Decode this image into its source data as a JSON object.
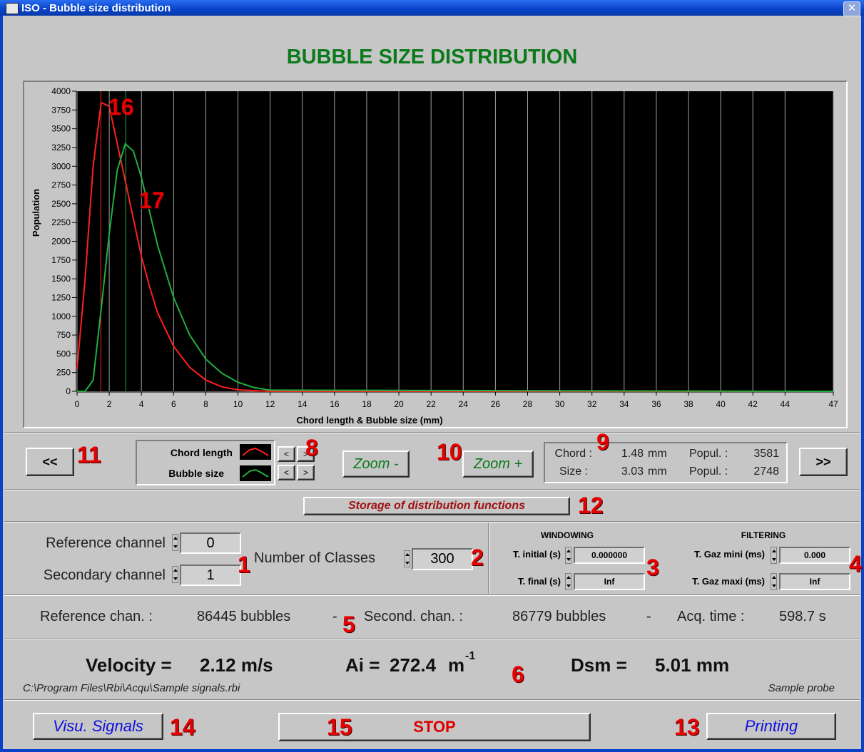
{
  "window": {
    "title": "ISO - Bubble size distribution"
  },
  "heading": "BUBBLE SIZE DISTRIBUTION",
  "graph": {
    "type": "line",
    "y_label": "Population",
    "x_label": "Chord length & Bubble size (mm)",
    "xlim": [
      0,
      47
    ],
    "ylim": [
      0,
      4000
    ],
    "xticks": [
      0,
      2,
      4,
      6,
      8,
      10,
      12,
      14,
      16,
      18,
      20,
      22,
      24,
      26,
      28,
      30,
      32,
      34,
      36,
      38,
      40,
      42,
      44,
      47
    ],
    "yticks": [
      0,
      250,
      500,
      750,
      1000,
      1250,
      1500,
      1750,
      2000,
      2250,
      2500,
      2750,
      3000,
      3250,
      3500,
      3750,
      4000
    ],
    "x": [
      0,
      0.5,
      1,
      1.5,
      2,
      2.5,
      3,
      3.5,
      4,
      4.5,
      5,
      6,
      7,
      8,
      9,
      10,
      11,
      12,
      47
    ],
    "series": [
      {
        "name": "Chord length",
        "color": "#ff2020",
        "values": [
          300,
          1500,
          3000,
          3850,
          3800,
          3300,
          2800,
          2300,
          1800,
          1400,
          1050,
          600,
          320,
          150,
          60,
          20,
          8,
          0,
          0
        ]
      },
      {
        "name": "Bubble size",
        "color": "#20b040",
        "values": [
          0,
          0,
          150,
          1100,
          2100,
          2950,
          3300,
          3200,
          2850,
          2400,
          1950,
          1250,
          750,
          430,
          240,
          120,
          50,
          15,
          0
        ]
      }
    ]
  },
  "nav": {
    "prev": "<<",
    "next": ">>",
    "left": "<",
    "right": ">",
    "zoom_out": "Zoom -",
    "zoom_in": "Zoom +"
  },
  "cursor": {
    "chord_label": "Chord :",
    "chord_value": "1.48",
    "size_label": "Size :",
    "size_value": "3.03",
    "unit": "mm",
    "popul_label": "Popul. :",
    "chord_popul": "3581",
    "size_popul": "2748"
  },
  "storage_button": "Storage of distribution functions",
  "channels": {
    "reference_label": "Reference channel",
    "reference_value": "0",
    "secondary_label": "Secondary channel",
    "secondary_value": "1",
    "classes_label": "Number of Classes",
    "classes_value": "300"
  },
  "windowing": {
    "title": "WINDOWING",
    "initial_label": "T. initial (s)",
    "initial_value": "0.000000",
    "final_label": "T. final (s)",
    "final_value": "Inf"
  },
  "filtering": {
    "title": "FILTERING",
    "mini_label": "T. Gaz mini (ms)",
    "mini_value": "0.000",
    "maxi_label": "T. Gaz maxi (ms)",
    "maxi_value": "Inf"
  },
  "stats": {
    "reference_label": "Reference chan. :",
    "reference_value": "86445 bubbles",
    "separator": "-",
    "second_label": "Second. chan. :",
    "second_value": "86779 bubbles",
    "acq_label": "Acq. time :",
    "acq_value": "598.7 s"
  },
  "results": {
    "velocity_label": "Velocity =",
    "velocity_value": "2.12 m/s",
    "ai_label": "Ai =",
    "ai_value": "272.4",
    "ai_unit": "m",
    "ai_exponent": "-1",
    "dsm_label": "Dsm =",
    "dsm_value": "5.01 mm",
    "file": "C:\\Program Files\\Rbi\\Acqu\\Sample signals.rbi",
    "probe": "Sample probe"
  },
  "buttons": {
    "visu": "Visu. Signals",
    "stop": "STOP",
    "print": "Printing"
  },
  "callouts": [
    "16",
    "17",
    "11",
    "8",
    "10",
    "9",
    "12",
    "1",
    "2",
    "3",
    "4",
    "5",
    "6",
    "14",
    "15",
    "13"
  ]
}
